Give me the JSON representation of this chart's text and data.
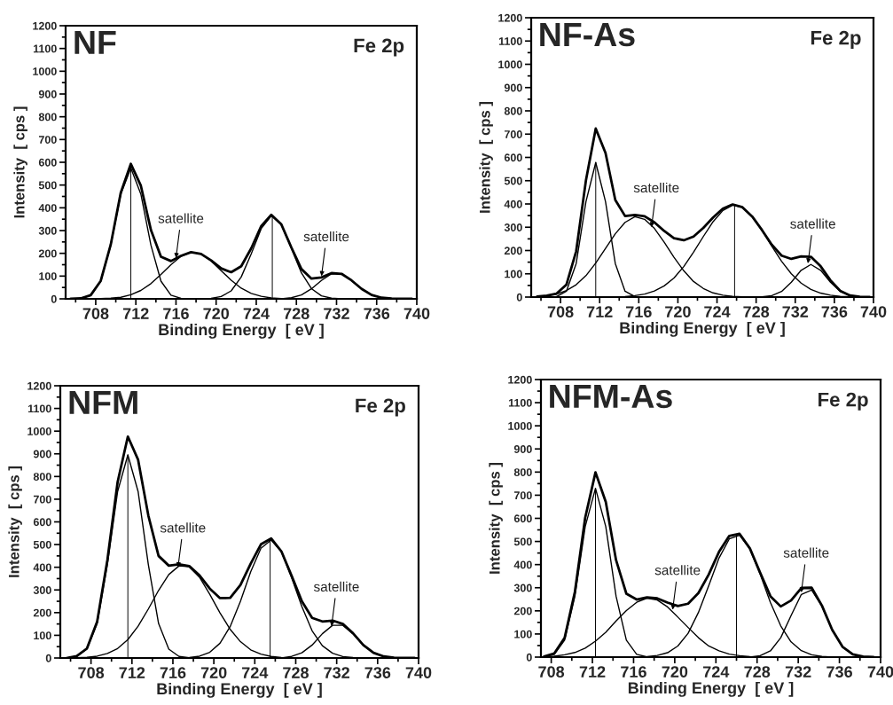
{
  "chart_data": [
    {
      "type": "line",
      "title": "NF",
      "xlabel": "Binding Energy  [ eV ]",
      "ylabel": "Intensity  [ cps ]",
      "xlim": [
        705,
        740
      ],
      "ylim": [
        0,
        1200
      ],
      "xticks": [
        708,
        712,
        716,
        720,
        724,
        728,
        732,
        736,
        740
      ],
      "yticks": [
        0,
        100,
        200,
        300,
        400,
        500,
        600,
        700,
        800,
        900,
        1000,
        1100,
        1200
      ],
      "annotations": [
        "Fe 2p",
        {
          "text": "satellite",
          "x": 716,
          "y": 180
        },
        {
          "text": "satellite",
          "x": 730.5,
          "y": 100
        }
      ],
      "series": [
        {
          "color": "#000000",
          "x": [
            705.5,
            706.5,
            707.5,
            708.5,
            709.5,
            710.5,
            711.5,
            712.5,
            713.5,
            714.5,
            715.5,
            716.5,
            717.5,
            718.5,
            719.5,
            720.5,
            721.5,
            722.5,
            723.5,
            724.5,
            725.5,
            726.5,
            727.5,
            728.5,
            729.5,
            730.5,
            731.5,
            732.5,
            733.5,
            734.5,
            735.5,
            736.5,
            737.5,
            738.5,
            739.5
          ],
          "values": [
            0,
            2,
            16,
            79,
            239,
            467,
            593,
            497,
            303,
            185,
            166,
            189,
            205,
            197,
            169,
            134,
            117,
            143,
            222,
            320,
            369,
            327,
            226,
            131,
            89,
            94,
            113,
            110,
            81,
            44,
            17,
            5,
            1,
            0,
            0
          ]
        },
        {
          "color": "#000000",
          "x": [
            705.5,
            706.5,
            707.5,
            708.5,
            709.5,
            710.5,
            711.5,
            712.5,
            713.5,
            714.5,
            715.5,
            716.5,
            717.5
          ],
          "values": [
            0,
            2,
            16,
            78,
            236,
            460,
            575,
            460,
            236,
            78,
            16,
            2,
            0
          ]
        },
        {
          "color": "#000000",
          "x": [
            707.5,
            708.5,
            709.5,
            710.5,
            711.5,
            712.5,
            713.5,
            714.5,
            715.5,
            716.5,
            717.5,
            718.5,
            719.5,
            720.5,
            721.5,
            722.5,
            723.5,
            724.5,
            725.5,
            726.5,
            727.5
          ],
          "values": [
            0,
            1,
            3,
            7,
            18,
            37,
            67,
            107,
            150,
            187,
            205,
            197,
            167,
            124,
            82,
            47,
            24,
            11,
            4,
            1,
            0
          ]
        },
        {
          "color": "#000000",
          "x": [
            718.5,
            719.5,
            720.5,
            721.5,
            722.5,
            723.5,
            724.5,
            725.5,
            726.5,
            727.5,
            728.5,
            729.5,
            730.5,
            731.5,
            732.5
          ],
          "values": [
            0,
            2,
            10,
            35,
            96,
            198,
            309,
            365,
            326,
            221,
            114,
            45,
            13,
            3,
            0
          ]
        },
        {
          "color": "#000000",
          "x": [
            726.5,
            727.5,
            728.5,
            729.5,
            730.5,
            731.5,
            732.5,
            733.5,
            734.5,
            735.5,
            736.5,
            737.5,
            738.5
          ],
          "values": [
            0,
            5,
            17,
            44,
            81,
            110,
            110,
            81,
            44,
            17,
            5,
            1,
            0
          ]
        },
        {
          "color": "#000000",
          "x": [
            711.5,
            711.5
          ],
          "values": [
            0,
            575
          ]
        },
        {
          "color": "#000000",
          "x": [
            725.6,
            725.6
          ],
          "values": [
            0,
            365
          ]
        }
      ]
    },
    {
      "type": "line",
      "title": "NF-As",
      "xlabel": "Binding Energy  [ eV ]",
      "ylabel": "Intensity  [ cps ]",
      "xlim": [
        705,
        740
      ],
      "ylim": [
        0,
        1200
      ],
      "xticks": [
        708,
        712,
        716,
        720,
        724,
        728,
        732,
        736,
        740
      ],
      "yticks": [
        0,
        100,
        200,
        300,
        400,
        500,
        600,
        700,
        800,
        900,
        1000,
        1100,
        1200
      ],
      "annotations": [
        "Fe 2p",
        {
          "text": "satellite",
          "x": 717.3,
          "y": 300
        },
        {
          "text": "satellite",
          "x": 733.3,
          "y": 145
        }
      ],
      "series": [
        {
          "color": "#000000",
          "x": [
            705.6,
            706.6,
            707.6,
            708.6,
            709.6,
            710.6,
            711.6,
            712.6,
            713.6,
            714.6,
            715.6,
            716.6,
            717.6,
            718.6,
            719.6,
            720.6,
            721.6,
            722.6,
            723.6,
            724.6,
            725.6,
            726.6,
            727.6,
            728.6,
            729.6,
            730.6,
            731.6,
            732.6,
            733.6,
            734.6,
            735.6,
            736.6,
            737.6,
            738.6,
            739.6
          ],
          "values": [
            2,
            6,
            15,
            53,
            197,
            502,
            724,
            619,
            417,
            348,
            353,
            347,
            321,
            284,
            253,
            244,
            260,
            297,
            342,
            380,
            398,
            386,
            346,
            288,
            225,
            178,
            164,
            175,
            173,
            132,
            72,
            27,
            7,
            1,
            0
          ]
        },
        {
          "color": "#000000",
          "x": [
            706.6,
            707.6,
            708.6,
            709.6,
            710.6,
            711.6,
            712.6,
            713.6,
            714.6,
            715.6,
            716.6
          ],
          "values": [
            0,
            2,
            25,
            144,
            410,
            578,
            410,
            144,
            25,
            2,
            0
          ]
        },
        {
          "color": "#000000",
          "x": [
            705.6,
            706.6,
            707.6,
            708.6,
            709.6,
            710.6,
            711.6,
            712.6,
            713.6,
            714.6,
            715.6,
            716.6,
            717.6,
            718.6,
            719.6,
            720.6,
            721.6,
            722.6,
            723.6,
            724.6,
            725.6,
            726.6,
            727.6
          ],
          "values": [
            2,
            6,
            13,
            28,
            53,
            92,
            146,
            209,
            272,
            321,
            345,
            334,
            295,
            236,
            171,
            113,
            67,
            37,
            18,
            8,
            3,
            1,
            0
          ]
        },
        {
          "color": "#000000",
          "x": [
            712.6,
            713.6,
            714.6,
            715.6,
            716.6,
            717.6,
            718.6,
            719.6,
            720.6,
            721.6,
            722.6,
            723.6,
            724.6,
            725.6,
            726.6,
            727.6,
            728.6,
            729.6,
            730.6,
            731.6,
            732.6,
            733.6,
            734.6,
            735.6,
            736.6,
            737.6,
            738.6
          ],
          "values": [
            0,
            1,
            2,
            6,
            13,
            26,
            48,
            82,
            131,
            193,
            260,
            324,
            372,
            395,
            385,
            346,
            287,
            219,
            154,
            100,
            60,
            33,
            17,
            8,
            3,
            1,
            0
          ]
        },
        {
          "color": "#000000",
          "x": [
            728.6,
            729.6,
            730.6,
            731.6,
            732.6,
            733.6,
            734.6,
            735.6,
            736.6,
            737.6,
            738.6,
            739.6
          ],
          "values": [
            1,
            6,
            24,
            64,
            115,
            140,
            115,
            64,
            24,
            6,
            1,
            0
          ]
        },
        {
          "color": "#000000",
          "x": [
            711.6,
            711.6
          ],
          "values": [
            0,
            578
          ]
        },
        {
          "color": "#000000",
          "x": [
            725.8,
            725.8
          ],
          "values": [
            0,
            395
          ]
        }
      ]
    },
    {
      "type": "line",
      "title": "NFM",
      "xlabel": "Binding Energy  [ eV ]",
      "ylabel": "Intensity  [ cps ]",
      "xlim": [
        705,
        740
      ],
      "ylim": [
        0,
        1200
      ],
      "xticks": [
        708,
        712,
        716,
        720,
        724,
        728,
        732,
        736,
        740
      ],
      "yticks": [
        0,
        100,
        200,
        300,
        400,
        500,
        600,
        700,
        800,
        900,
        1000,
        1100,
        1200
      ],
      "annotations": [
        "Fe 2p",
        {
          "text": "satellite",
          "x": 716.5,
          "y": 400
        },
        {
          "text": "satellite",
          "x": 731.5,
          "y": 140
        }
      ],
      "series": [
        {
          "color": "#000000",
          "x": [
            705.6,
            706.6,
            707.6,
            708.6,
            709.6,
            710.6,
            711.6,
            712.6,
            713.6,
            714.6,
            715.6,
            716.6,
            717.6,
            718.6,
            719.6,
            720.6,
            721.6,
            722.6,
            723.6,
            724.6,
            725.6,
            726.6,
            727.6,
            728.6,
            729.6,
            730.6,
            731.6,
            732.6,
            733.6,
            734.6,
            735.6,
            736.6,
            737.6,
            738.6,
            739.6
          ],
          "values": [
            0,
            8,
            42,
            160,
            432,
            776,
            976,
            874,
            628,
            450,
            407,
            413,
            405,
            364,
            306,
            264,
            265,
            322,
            416,
            501,
            527,
            470,
            362,
            250,
            177,
            161,
            165,
            150,
            109,
            57,
            23,
            7,
            1,
            0,
            0
          ]
        },
        {
          "color": "#000000",
          "x": [
            705.6,
            706.6,
            707.6,
            708.6,
            709.6,
            710.6,
            711.6,
            712.6,
            713.6,
            714.6,
            715.6,
            716.6,
            717.6,
            718.6
          ],
          "values": [
            0,
            7,
            39,
            152,
            412,
            734,
            895,
            734,
            412,
            152,
            39,
            7,
            1,
            0
          ]
        },
        {
          "color": "#000000",
          "x": [
            705.6,
            706.6,
            707.6,
            708.6,
            709.6,
            710.6,
            711.6,
            712.6,
            713.6,
            714.6,
            715.6,
            716.6,
            717.6,
            718.6,
            719.6,
            720.6,
            721.6,
            722.6,
            723.6,
            724.6,
            725.6,
            726.6,
            727.6,
            728.6
          ],
          "values": [
            0,
            1,
            3,
            8,
            20,
            42,
            81,
            140,
            216,
            298,
            368,
            406,
            402,
            356,
            281,
            199,
            126,
            72,
            36,
            17,
            7,
            2,
            1,
            0
          ]
        },
        {
          "color": "#000000",
          "x": [
            716.6,
            717.6,
            718.6,
            719.6,
            720.6,
            721.6,
            722.6,
            723.6,
            724.6,
            725.6,
            726.6,
            727.6,
            728.6,
            729.6,
            730.6,
            731.6,
            732.6,
            733.6,
            734.6
          ],
          "values": [
            0,
            2,
            8,
            25,
            65,
            139,
            250,
            380,
            484,
            520,
            468,
            354,
            227,
            120,
            54,
            21,
            6,
            2,
            0
          ]
        },
        {
          "color": "#000000",
          "x": [
            726.6,
            727.6,
            728.6,
            729.6,
            730.6,
            731.6,
            732.6,
            733.6,
            734.6,
            735.6,
            736.6,
            737.6,
            738.6
          ],
          "values": [
            0,
            7,
            23,
            57,
            107,
            144,
            144,
            107,
            57,
            23,
            7,
            1,
            0
          ]
        },
        {
          "color": "#000000",
          "x": [
            711.6,
            711.6
          ],
          "values": [
            0,
            895
          ]
        },
        {
          "color": "#000000",
          "x": [
            725.5,
            725.5
          ],
          "values": [
            0,
            520
          ]
        }
      ]
    },
    {
      "type": "line",
      "title": "NFM-As",
      "xlabel": "Binding Energy  [ eV ]",
      "ylabel": "Intensity  [ cps ]",
      "xlim": [
        707,
        740
      ],
      "ylim": [
        0,
        1200
      ],
      "xticks": [
        708,
        712,
        716,
        720,
        724,
        728,
        732,
        736,
        740
      ],
      "yticks": [
        0,
        100,
        200,
        300,
        400,
        500,
        600,
        700,
        800,
        900,
        1000,
        1100,
        1200
      ],
      "annotations": [
        "Fe 2p",
        {
          "text": "satellite",
          "x": 719.8,
          "y": 205
        },
        {
          "text": "satellite",
          "x": 732.3,
          "y": 280
        }
      ],
      "series": [
        {
          "color": "#000000",
          "x": [
            707.3,
            708.3,
            709.3,
            710.3,
            711.3,
            712.3,
            713.3,
            714.3,
            715.3,
            716.3,
            717.3,
            718.3,
            719.3,
            720.3,
            721.3,
            722.3,
            723.3,
            724.3,
            725.3,
            726.3,
            727.3,
            728.3,
            729.3,
            730.3,
            731.3,
            732.3,
            733.3,
            734.3,
            735.3,
            736.3,
            737.3,
            738.3,
            739.3
          ],
          "values": [
            3,
            16,
            83,
            283,
            603,
            799,
            671,
            419,
            274,
            249,
            258,
            254,
            236,
            221,
            231,
            277,
            357,
            455,
            524,
            533,
            470,
            365,
            263,
            219,
            245,
            299,
            300,
            223,
            118,
            45,
            12,
            2,
            0
          ]
        },
        {
          "color": "#000000",
          "x": [
            707.3,
            708.3,
            709.3,
            710.3,
            711.3,
            712.3,
            713.3,
            714.3,
            715.3,
            716.3,
            717.3,
            718.3
          ],
          "values": [
            1,
            12,
            73,
            263,
            564,
            730,
            564,
            263,
            73,
            12,
            1,
            0
          ]
        },
        {
          "color": "#000000",
          "x": [
            707.3,
            708.3,
            709.3,
            710.3,
            711.3,
            712.3,
            713.3,
            714.3,
            715.3,
            716.3,
            717.3,
            718.3,
            719.3,
            720.3,
            721.3,
            722.3,
            723.3,
            724.3,
            725.3,
            726.3,
            727.3,
            728.3,
            729.3
          ],
          "values": [
            2,
            4,
            10,
            20,
            39,
            69,
            107,
            156,
            201,
            237,
            255,
            247,
            217,
            173,
            128,
            84,
            48,
            27,
            13,
            6,
            2,
            1,
            0
          ]
        },
        {
          "color": "#000000",
          "x": [
            716.3,
            717.3,
            718.3,
            719.3,
            720.3,
            721.3,
            722.3,
            723.3,
            724.3,
            725.3,
            726.3,
            727.3,
            728.3,
            729.3,
            730.3,
            731.3,
            732.3,
            733.3,
            734.3,
            735.3
          ],
          "values": [
            0,
            2,
            7,
            19,
            48,
            103,
            193,
            309,
            428,
            511,
            527,
            468,
            358,
            236,
            135,
            66,
            28,
            10,
            3,
            0
          ]
        },
        {
          "color": "#000000",
          "x": [
            727.3,
            728.3,
            729.3,
            730.3,
            731.3,
            732.3,
            733.3,
            734.3,
            735.3,
            736.3,
            737.3,
            738.3,
            739.3
          ],
          "values": [
            0,
            6,
            27,
            84,
            179,
            271,
            290,
            220,
            118,
            45,
            12,
            2,
            0
          ]
        },
        {
          "color": "#000000",
          "x": [
            712.3,
            712.3
          ],
          "values": [
            0,
            730
          ]
        },
        {
          "color": "#000000",
          "x": [
            726,
            726
          ],
          "values": [
            0,
            530
          ]
        }
      ]
    }
  ]
}
